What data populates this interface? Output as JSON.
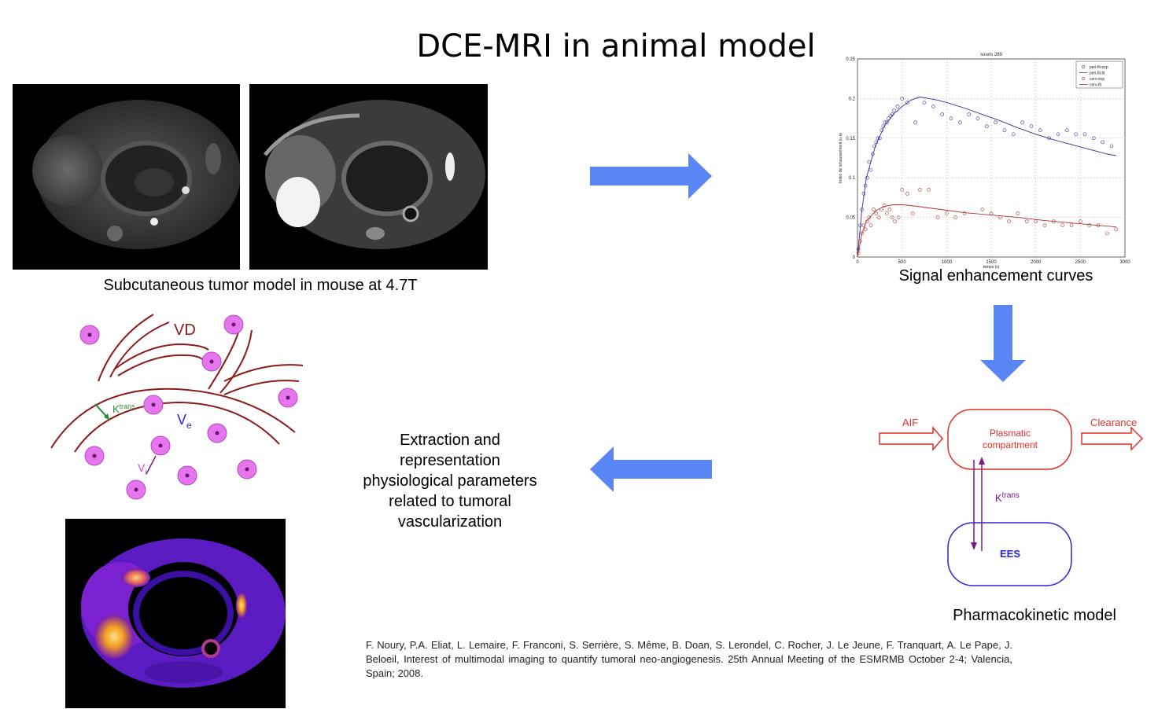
{
  "title": "DCE-MRI in animal model",
  "captions": {
    "mri": "Subcutaneous tumor model in mouse at 4.7T",
    "curves": "Signal enhancement curves",
    "pk": "Pharmacokinetic model",
    "extraction": "Extraction and representation physiological parameters related to tumoral vascularization"
  },
  "vessel_diagram": {
    "vd": "VD",
    "ktrans": "K",
    "ktrans_sup": "trans",
    "ve": "V",
    "ve_sub": "e",
    "vi": "V",
    "vi_sub": "i"
  },
  "pk_model": {
    "aif": "AIF",
    "clearance": "Clearance",
    "plasmatic": "Plasmatic",
    "compartment": "compartment",
    "ktrans": "K",
    "ktrans_sup": "trans",
    "ees": "EES"
  },
  "colors": {
    "arrow": "#5a86f5",
    "pk_red": "#e0302a",
    "pk_blue": "#2a22d8",
    "ktrans_purple": "#7a1890",
    "vessel": "#8b1a1a",
    "cell": "#e676ee"
  },
  "reference": "F. Noury, P.A. Eliat, L. Lemaire, F. Franconi, S. Serrière, S. Même, B. Doan, S. Lerondel, C. Rocher, J. Le Jeune, F. Tranquart, A. Le Pape, J. Beloeil, Interest of multimodal imaging to quantify tumoral neo-angiogenesis. 25th Annual Meeting of the ESMRMB October 2-4; Valencia, Spain; 2008.",
  "chart_data": {
    "type": "scatter",
    "title": "souris 289",
    "xlabel": "temps (s)",
    "ylabel": "Index de rehaussement (u.a)",
    "xlim": [
      0,
      3000
    ],
    "ylim": [
      0,
      0.25
    ],
    "xticks": [
      "0",
      "500",
      "1000",
      "1500",
      "2000",
      "2500",
      "3000"
    ],
    "yticks": [
      "0",
      "0.05",
      "0.1",
      "0.15",
      "0.2",
      "0.25"
    ],
    "grid": true,
    "legend": "top-right",
    "legend_entries": [
      "peri-fit-exp",
      "peri-fit-fit",
      "cerv-exp",
      "cerv-fit"
    ],
    "series": [
      {
        "name": "peri-fit-exp",
        "style": "points",
        "color": "#3030a0",
        "x": [
          10,
          30,
          50,
          70,
          90,
          110,
          130,
          150,
          170,
          190,
          210,
          230,
          250,
          270,
          290,
          310,
          330,
          350,
          370,
          390,
          410,
          450,
          500,
          560,
          650,
          750,
          850,
          950,
          1050,
          1150,
          1250,
          1350,
          1450,
          1550,
          1650,
          1750,
          1850,
          1950,
          2050,
          2150,
          2250,
          2350,
          2450,
          2550,
          2650,
          2750,
          2850
        ],
        "y": [
          0.01,
          0.04,
          0.06,
          0.08,
          0.09,
          0.1,
          0.12,
          0.11,
          0.13,
          0.14,
          0.145,
          0.15,
          0.15,
          0.16,
          0.165,
          0.17,
          0.17,
          0.175,
          0.178,
          0.18,
          0.185,
          0.19,
          0.2,
          0.195,
          0.17,
          0.195,
          0.19,
          0.18,
          0.175,
          0.17,
          0.18,
          0.175,
          0.165,
          0.17,
          0.16,
          0.155,
          0.17,
          0.165,
          0.16,
          0.15,
          0.155,
          0.16,
          0.155,
          0.155,
          0.15,
          0.145,
          0.14
        ]
      },
      {
        "name": "peri-fit-fit",
        "style": "line",
        "color": "#3030a0",
        "x": [
          0,
          50,
          100,
          200,
          300,
          400,
          500,
          600,
          700,
          800,
          900,
          1000,
          1200,
          1400,
          1600,
          1800,
          2000,
          2200,
          2400,
          2600,
          2800,
          2900
        ],
        "y": [
          0,
          0.06,
          0.1,
          0.14,
          0.165,
          0.18,
          0.19,
          0.198,
          0.202,
          0.2,
          0.198,
          0.195,
          0.188,
          0.18,
          0.172,
          0.163,
          0.155,
          0.148,
          0.142,
          0.136,
          0.13,
          0.128
        ]
      },
      {
        "name": "cerv-exp",
        "style": "points",
        "color": "#b03030",
        "x": [
          10,
          30,
          50,
          70,
          90,
          110,
          130,
          150,
          180,
          210,
          240,
          270,
          300,
          330,
          360,
          390,
          420,
          460,
          500,
          560,
          620,
          700,
          800,
          900,
          1000,
          1100,
          1200,
          1400,
          1500,
          1600,
          1700,
          1800,
          1900,
          2000,
          2100,
          2200,
          2300,
          2400,
          2500,
          2600,
          2700,
          2800,
          2900
        ],
        "y": [
          0.005,
          0.02,
          0.03,
          0.04,
          0.035,
          0.045,
          0.05,
          0.04,
          0.06,
          0.055,
          0.05,
          0.06,
          0.065,
          0.055,
          0.06,
          0.05,
          0.045,
          0.05,
          0.085,
          0.08,
          0.055,
          0.085,
          0.085,
          0.05,
          0.055,
          0.05,
          0.055,
          0.06,
          0.055,
          0.05,
          0.045,
          0.055,
          0.045,
          0.045,
          0.04,
          0.045,
          0.04,
          0.04,
          0.045,
          0.04,
          0.04,
          0.03,
          0.035
        ]
      },
      {
        "name": "cerv-fit",
        "style": "line",
        "color": "#b03030",
        "x": [
          0,
          50,
          100,
          200,
          300,
          400,
          500,
          600,
          800,
          1000,
          1200,
          1500,
          1800,
          2100,
          2400,
          2700,
          2900
        ],
        "y": [
          0,
          0.03,
          0.045,
          0.058,
          0.064,
          0.066,
          0.066,
          0.065,
          0.062,
          0.059,
          0.056,
          0.053,
          0.05,
          0.046,
          0.043,
          0.04,
          0.038
        ]
      }
    ]
  }
}
